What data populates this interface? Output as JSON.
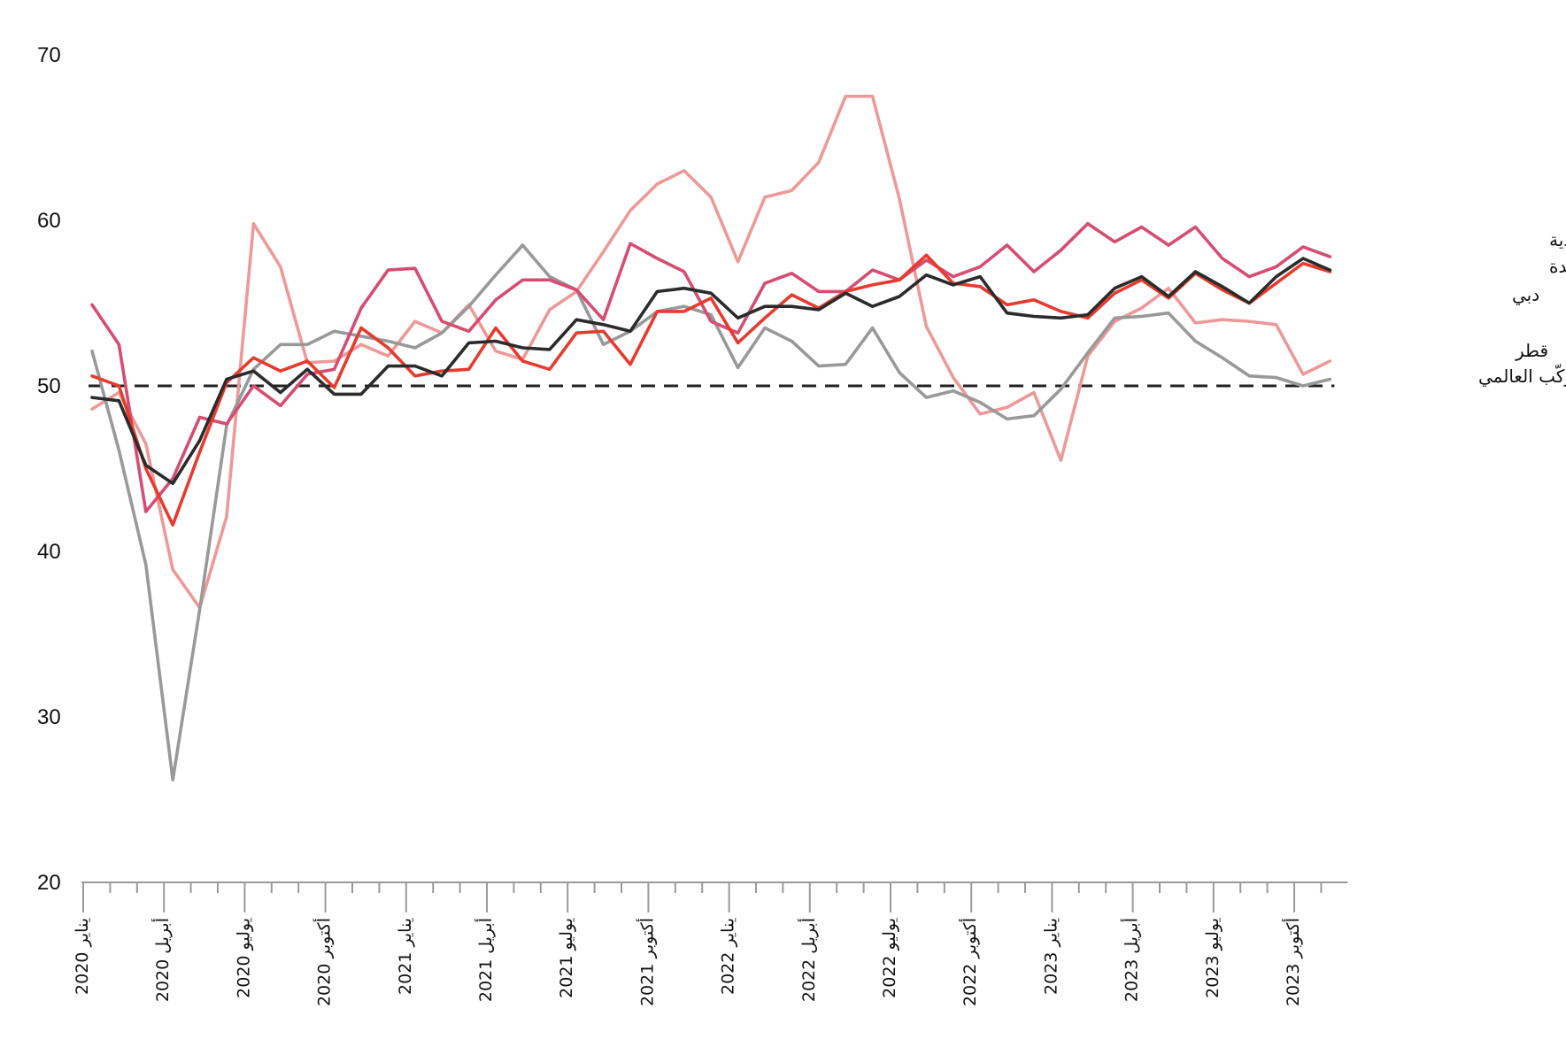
{
  "chart_data": {
    "type": "line",
    "ylim": [
      20,
      70
    ],
    "yticks": [
      "70",
      "60",
      "50",
      "40",
      "30",
      "20"
    ],
    "ytick_values": [
      70,
      60,
      50,
      40,
      30,
      20
    ],
    "reference_line": 50,
    "xticks": [
      {
        "label": "يناير 2020",
        "index": 0
      },
      {
        "label": "أبريل 2020",
        "index": 3
      },
      {
        "label": "يوليو 2020",
        "index": 6
      },
      {
        "label": "أكتوبر 2020",
        "index": 9
      },
      {
        "label": "يناير 2021",
        "index": 12
      },
      {
        "label": "أبريل 2021",
        "index": 15
      },
      {
        "label": "يوليو 2021",
        "index": 18
      },
      {
        "label": "أكتوبر 2021",
        "index": 21
      },
      {
        "label": "يناير 2022",
        "index": 24
      },
      {
        "label": "أبريل 2022",
        "index": 27
      },
      {
        "label": "يوليو 2022",
        "index": 30
      },
      {
        "label": "أكتوبر 2022",
        "index": 33
      },
      {
        "label": "يناير 2023",
        "index": 36
      },
      {
        "label": "أبريل 2023",
        "index": 39
      },
      {
        "label": "يوليو 2023",
        "index": 42
      },
      {
        "label": "أكتوبر 2023",
        "index": 45
      }
    ],
    "period_count": 47,
    "series": [
      {
        "name": "قطر",
        "color": "#ee9999",
        "values": [
          48.6,
          49.6,
          46.5,
          38.9,
          36.6,
          42.1,
          59.8,
          57.2,
          51.4,
          51.5,
          52.5,
          51.8,
          53.9,
          53.2,
          54.9,
          52.1,
          51.6,
          54.6,
          55.7,
          58.1,
          60.6,
          62.2,
          63.0,
          61.4,
          57.5,
          61.4,
          61.8,
          63.5,
          67.5,
          67.5,
          61.3,
          53.6,
          50.5,
          48.3,
          48.7,
          49.6,
          45.5,
          51.8,
          53.9,
          54.7,
          55.9,
          53.8,
          54.0,
          53.9,
          53.7,
          50.7,
          51.5
        ]
      },
      {
        "name": "المركّب العالمي",
        "color": "#999999",
        "values": [
          52.1,
          46.1,
          39.2,
          26.2,
          36.5,
          47.6,
          51.0,
          52.5,
          52.5,
          53.3,
          53.0,
          52.7,
          52.3,
          53.2,
          54.8,
          56.7,
          58.5,
          56.6,
          55.8,
          52.5,
          53.3,
          54.5,
          54.8,
          54.3,
          51.1,
          53.5,
          52.7,
          51.2,
          51.3,
          53.5,
          50.8,
          49.3,
          49.7,
          49.0,
          48.0,
          48.2,
          49.8,
          52.0,
          54.1,
          54.2,
          54.4,
          52.7,
          51.7,
          50.6,
          50.5,
          50.0,
          50.4
        ]
      },
      {
        "name": "المملكة العربية السعودية",
        "color": "#d64d71",
        "values": [
          54.9,
          52.5,
          42.4,
          44.4,
          48.1,
          47.7,
          50.0,
          48.8,
          50.7,
          51.0,
          54.7,
          57.0,
          57.1,
          53.9,
          53.3,
          55.2,
          56.4,
          56.4,
          55.8,
          54.0,
          58.6,
          57.7,
          56.9,
          53.9,
          53.2,
          56.2,
          56.8,
          55.7,
          55.7,
          57.0,
          56.4,
          57.6,
          56.6,
          57.2,
          58.5,
          56.9,
          58.2,
          59.8,
          58.7,
          59.6,
          58.5,
          59.6,
          57.7,
          56.6,
          57.2,
          58.4,
          57.8
        ]
      },
      {
        "name": "الإمارات العربية المتحدة",
        "color": "#e63b2e",
        "values": [
          50.6,
          50.0,
          45.0,
          41.6,
          46.0,
          50.2,
          51.7,
          50.9,
          51.5,
          49.9,
          53.5,
          52.3,
          50.6,
          50.9,
          51.0,
          53.5,
          51.5,
          51.0,
          53.2,
          53.3,
          51.3,
          54.5,
          54.5,
          55.3,
          52.6,
          54.1,
          55.5,
          54.7,
          55.7,
          56.1,
          56.4,
          57.9,
          56.2,
          56.0,
          54.9,
          55.2,
          54.5,
          54.1,
          55.6,
          56.4,
          55.3,
          56.8,
          55.8,
          55.0,
          56.2,
          57.4,
          56.9
        ]
      },
      {
        "name": "دبي",
        "color": "#2b2b2b",
        "values": [
          49.3,
          49.1,
          45.2,
          44.1,
          46.7,
          50.4,
          50.9,
          49.6,
          51.0,
          49.5,
          49.5,
          51.2,
          51.2,
          50.6,
          52.6,
          52.7,
          52.3,
          52.2,
          54.0,
          53.7,
          53.3,
          55.7,
          55.9,
          55.6,
          54.1,
          54.8,
          54.8,
          54.6,
          55.6,
          54.8,
          55.4,
          56.7,
          56.1,
          56.6,
          54.4,
          54.2,
          54.1,
          54.3,
          55.9,
          56.6,
          55.4,
          56.9,
          56.0,
          55.0,
          56.6,
          57.7,
          57.0
        ]
      }
    ],
    "labels": {
      "saudi": "المملكة العربية السعودية",
      "uae": "الإمارات العربية المتحدة",
      "dubai": "دبي",
      "qatar": "قطر",
      "global": "المركّب العالمي"
    }
  }
}
